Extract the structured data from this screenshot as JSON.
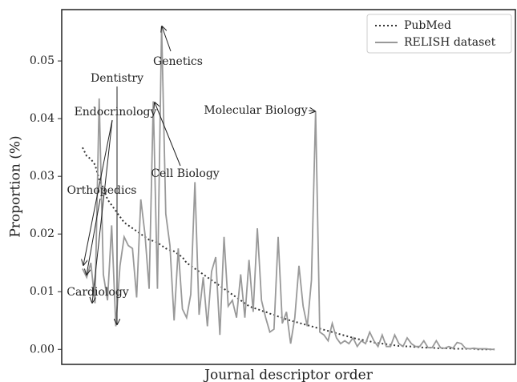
{
  "chart_data": {
    "type": "line",
    "xlabel": "Journal descriptor order",
    "ylabel": "Proportion (%)",
    "x": [
      0,
      1,
      2,
      3,
      4,
      5,
      6,
      7,
      8,
      9,
      10,
      11,
      12,
      13,
      14,
      15,
      16,
      17,
      18,
      19,
      20,
      21,
      22,
      23,
      24,
      25,
      26,
      27,
      28,
      29,
      30,
      31,
      32,
      33,
      34,
      35,
      36,
      37,
      38,
      39,
      40,
      41,
      42,
      43,
      44,
      45,
      46,
      47,
      48,
      49,
      50,
      51,
      52,
      53,
      54,
      55,
      56,
      57,
      58,
      59,
      60,
      61,
      62,
      63,
      64,
      65,
      66,
      67,
      68,
      69,
      70,
      71,
      72,
      73,
      74,
      75,
      76,
      77,
      78,
      79,
      80,
      81,
      82,
      83,
      84,
      85,
      86,
      87,
      88,
      89,
      90,
      91,
      92,
      93,
      94,
      95,
      96,
      97,
      98,
      99
    ],
    "xlim": [
      -5,
      104
    ],
    "ylim": [
      -0.0026,
      0.0589
    ],
    "yticks": [
      {
        "value": 0,
        "label": "0.00"
      },
      {
        "value": 0.01,
        "label": "0.01"
      },
      {
        "value": 0.02,
        "label": "0.02"
      },
      {
        "value": 0.03,
        "label": "0.03"
      },
      {
        "value": 0.04,
        "label": "0.04"
      },
      {
        "value": 0.05,
        "label": "0.05"
      }
    ],
    "legend": "upper right",
    "series": [
      {
        "name": "PubMed",
        "color": "#333333",
        "style": "dotted",
        "values": [
          0.035,
          0.0335,
          0.033,
          0.032,
          0.0295,
          0.028,
          0.026,
          0.025,
          0.024,
          0.023,
          0.022,
          0.0215,
          0.021,
          0.0205,
          0.02,
          0.0195,
          0.019,
          0.0188,
          0.0185,
          0.018,
          0.0175,
          0.0172,
          0.017,
          0.0165,
          0.016,
          0.015,
          0.0145,
          0.014,
          0.0135,
          0.013,
          0.0125,
          0.012,
          0.0115,
          0.011,
          0.0105,
          0.01,
          0.0095,
          0.009,
          0.0085,
          0.008,
          0.0075,
          0.0072,
          0.007,
          0.0067,
          0.0065,
          0.0062,
          0.006,
          0.0057,
          0.0055,
          0.0052,
          0.005,
          0.0048,
          0.0046,
          0.0044,
          0.0042,
          0.004,
          0.0038,
          0.0036,
          0.0034,
          0.0032,
          0.003,
          0.0028,
          0.0026,
          0.0024,
          0.0022,
          0.002,
          0.0018,
          0.0017,
          0.0015,
          0.0014,
          0.0012,
          0.0011,
          0.001,
          0.0009,
          0.0008,
          0.0007,
          0.0006,
          0.0006,
          0.0005,
          0.0005,
          0.0004,
          0.0004,
          0.0003,
          0.0003,
          0.0003,
          0.0002,
          0.0002,
          0.0002,
          0.0002,
          0.0001,
          0.0001,
          0.0001,
          0.0001,
          0.0001,
          0.0001,
          0,
          0,
          0,
          0,
          0
        ]
      },
      {
        "name": "RELISH dataset",
        "color": "#999999",
        "style": "solid",
        "values": [
          0.014,
          0.0125,
          0.015,
          0.008,
          0.0435,
          0.013,
          0.0085,
          0.0215,
          0.004,
          0.0145,
          0.0195,
          0.018,
          0.0175,
          0.009,
          0.026,
          0.02,
          0.0105,
          0.043,
          0.0105,
          0.056,
          0.0235,
          0.018,
          0.005,
          0.0175,
          0.007,
          0.0055,
          0.0095,
          0.029,
          0.006,
          0.0125,
          0.004,
          0.0135,
          0.016,
          0.0025,
          0.0195,
          0.0075,
          0.0085,
          0.0055,
          0.013,
          0.0055,
          0.0155,
          0.0065,
          0.021,
          0.0085,
          0.0055,
          0.003,
          0.0035,
          0.0195,
          0.0045,
          0.0065,
          0.001,
          0.0055,
          0.0145,
          0.0075,
          0.004,
          0.012,
          0.0413,
          0.003,
          0.0025,
          0.0015,
          0.0045,
          0.002,
          0.001,
          0.0015,
          0.001,
          0.002,
          0.0005,
          0.0015,
          0.001,
          0.003,
          0.0015,
          0.0005,
          0.0025,
          0.0005,
          0.0005,
          0.0025,
          0.001,
          0.0005,
          0.002,
          0.001,
          0.0005,
          0.0005,
          0.0015,
          0.0003,
          0.0003,
          0.0015,
          0.0003,
          0.0002,
          0.0005,
          0.0002,
          0.0012,
          0.001,
          0.0002,
          0.0001,
          0.0002,
          0.0001,
          0.0001,
          0.0001,
          0,
          0
        ]
      }
    ],
    "annotations": [
      "Genetics",
      "Dentistry",
      "Endocrinology",
      "Molecular Biology",
      "Cell Biology",
      "Orthopedics",
      "Cardiology"
    ]
  }
}
